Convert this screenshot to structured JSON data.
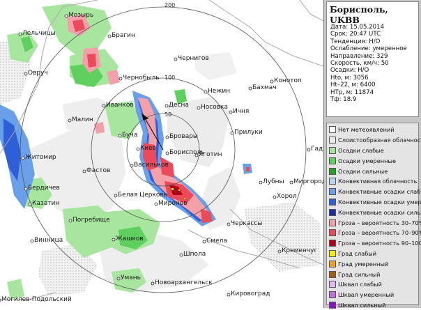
{
  "map": {
    "range_labels": [
      "200",
      "100",
      "50"
    ],
    "cities": [
      {
        "name": "Мозырь"
      },
      {
        "name": "Лельчицы"
      },
      {
        "name": "Брагин"
      },
      {
        "name": "Овруч"
      },
      {
        "name": "Чернигов"
      },
      {
        "name": "Чернобыль"
      },
      {
        "name": "Нежин"
      },
      {
        "name": "Бахмач"
      },
      {
        "name": "Конотоп"
      },
      {
        "name": "Иванков"
      },
      {
        "name": "Десна"
      },
      {
        "name": "Носовка"
      },
      {
        "name": "Ичня"
      },
      {
        "name": "Малин"
      },
      {
        "name": "Бровары"
      },
      {
        "name": "Прилуки"
      },
      {
        "name": "Буча"
      },
      {
        "name": "Киев"
      },
      {
        "name": "Борисполь"
      },
      {
        "name": "Гадяч"
      },
      {
        "name": "Житомир"
      },
      {
        "name": "Яготин"
      },
      {
        "name": "Васильков"
      },
      {
        "name": "Фастов"
      },
      {
        "name": "Лубны"
      },
      {
        "name": "Миргород"
      },
      {
        "name": "Бердичев"
      },
      {
        "name": "Белая Церковь"
      },
      {
        "name": "Казатин"
      },
      {
        "name": "Хорол"
      },
      {
        "name": "Миронов"
      },
      {
        "name": "Погребище"
      },
      {
        "name": "Черкассы"
      },
      {
        "name": "Жашков"
      },
      {
        "name": "Смела"
      },
      {
        "name": "Винница"
      },
      {
        "name": "Шпола"
      },
      {
        "name": "Кременчуг"
      },
      {
        "name": "Умань"
      },
      {
        "name": "Могилев-Подольский"
      },
      {
        "name": "Новоархангельск"
      },
      {
        "name": "Кировоград"
      }
    ]
  },
  "info": {
    "station": "Борисполь, UKBB",
    "lines": [
      "Дата: 15.05.2014",
      "Срок: 20:47 UTC",
      "Тенденция: Н/О",
      "Ослабление: умеренное",
      "Направление: 329",
      "Скорость, км/ч: 50",
      "Осадки: Н/О",
      "Hto, м: 3056",
      "Ht–22, м: 6400",
      "НТр, м: 11874",
      "Тф: 18.9"
    ]
  },
  "legend": [
    {
      "label": "Нет метеоявлений",
      "color": "#ffffff"
    },
    {
      "label": "Слоистообразная облачность",
      "color": "#ebebeb"
    },
    {
      "label": "Осадки слабые",
      "color": "#a8e6a0"
    },
    {
      "label": "Осадки умеренные",
      "color": "#5fd05f"
    },
    {
      "label": "Осадки сильные",
      "color": "#2aa02a"
    },
    {
      "label": "Конвективная облачность",
      "color": "#b8d4f2"
    },
    {
      "label": "Конвективные осадки слабые",
      "color": "#6aa0ea"
    },
    {
      "label": "Конвективные осадки умерен.",
      "color": "#2e5fd6"
    },
    {
      "label": "Конвективные осадки сильные",
      "color": "#1e2e9c"
    },
    {
      "label": "Гроза – вероятность 30–70%",
      "color": "#f4a0a8"
    },
    {
      "label": "Гроза – вероятность 70–90%",
      "color": "#ea4a5a"
    },
    {
      "label": "Гроза – вероятность 90–100%",
      "color": "#b00018"
    },
    {
      "label": "Град слабый",
      "color": "#f5f000"
    },
    {
      "label": "Град умеренный",
      "color": "#f0a020"
    },
    {
      "label": "Град сильный",
      "color": "#a06018"
    },
    {
      "label": "Шквал слабый",
      "color": "#e0b8f0"
    },
    {
      "label": "Шквал умеренный",
      "color": "#c070e0"
    },
    {
      "label": "Шквал сильный",
      "color": "#8a10c8"
    }
  ]
}
